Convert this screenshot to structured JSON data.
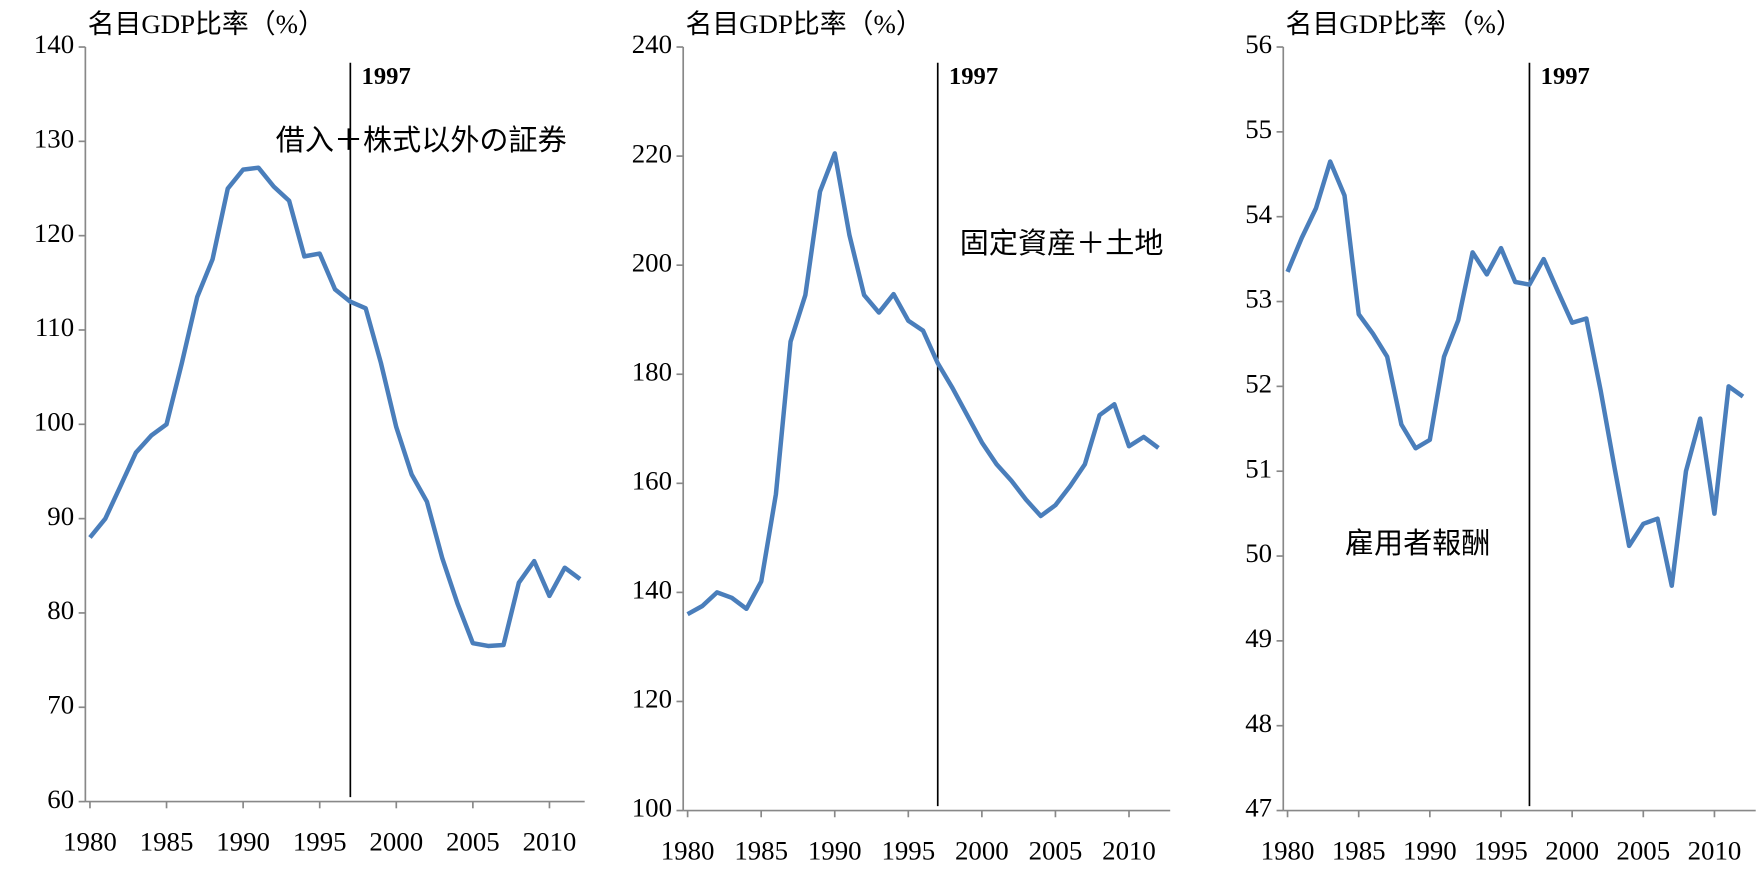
{
  "chart_data": [
    {
      "type": "line",
      "y_label": "名目GDP比率（%）",
      "x": [
        1980,
        1981,
        1982,
        1983,
        1984,
        1985,
        1986,
        1987,
        1988,
        1989,
        1990,
        1991,
        1992,
        1993,
        1994,
        1995,
        1996,
        1997,
        1998,
        1999,
        2000,
        2001,
        2002,
        2003,
        2004,
        2005,
        2006,
        2007,
        2008,
        2009,
        2010,
        2011,
        2012
      ],
      "series": [
        {
          "name": "借入＋株式以外の証券",
          "color": "#4a7ebb",
          "values": [
            88,
            90,
            93.5,
            97,
            98.8,
            100,
            106.5,
            113.5,
            117.5,
            125,
            127,
            127.2,
            125.2,
            123.7,
            117.8,
            118.1,
            114.3,
            113,
            112.3,
            106.5,
            99.7,
            94.7,
            91.8,
            85.8,
            81,
            76.8,
            76.5,
            76.6,
            83.2,
            85.5,
            81.8,
            84.8,
            83.6
          ]
        }
      ],
      "xlim": [
        1979.7,
        2012.3
      ],
      "xticks": [
        1980,
        1985,
        1990,
        1995,
        2000,
        2005,
        2010
      ],
      "ylim": [
        60,
        140
      ],
      "yticks": [
        60,
        70,
        80,
        90,
        100,
        110,
        120,
        130,
        140
      ],
      "vline": 1997
    },
    {
      "type": "line",
      "y_label": "名目GDP比率（%）",
      "x": [
        1980,
        1981,
        1982,
        1983,
        1984,
        1985,
        1986,
        1987,
        1988,
        1989,
        1990,
        1991,
        1992,
        1993,
        1994,
        1995,
        1996,
        1997,
        1998,
        1999,
        2000,
        2001,
        2002,
        2003,
        2004,
        2005,
        2006,
        2007,
        2008,
        2009,
        2010,
        2011,
        2012
      ],
      "series": [
        {
          "name": "固定資産＋土地",
          "color": "#4a7ebb",
          "values": [
            136,
            137.5,
            140,
            139,
            137,
            142,
            158,
            186,
            194.5,
            213.5,
            220.5,
            205.5,
            194.5,
            191.3,
            194.7,
            189.8,
            188,
            182,
            177.5,
            172.5,
            167.5,
            163.5,
            160.5,
            157,
            154,
            156,
            159.5,
            163.5,
            172.5,
            174.5,
            166.8,
            168.5,
            166.5
          ]
        }
      ],
      "xlim": [
        1979.7,
        2012.8
      ],
      "xticks": [
        1980,
        1985,
        1990,
        1995,
        2000,
        2005,
        2010
      ],
      "ylim": [
        100,
        240
      ],
      "yticks": [
        100,
        120,
        140,
        160,
        180,
        200,
        220,
        240
      ],
      "vline": 1997
    },
    {
      "type": "line",
      "y_label": "名目GDP比率（%）",
      "x": [
        1980,
        1981,
        1982,
        1983,
        1984,
        1985,
        1986,
        1987,
        1988,
        1989,
        1990,
        1991,
        1992,
        1993,
        1994,
        1995,
        1996,
        1997,
        1998,
        1999,
        2000,
        2001,
        2002,
        2003,
        2004,
        2005,
        2006,
        2007,
        2008,
        2009,
        2010,
        2011,
        2012
      ],
      "series": [
        {
          "name": "雇用者報酬",
          "color": "#4a7ebb",
          "values": [
            53.35,
            53.75,
            54.1,
            54.65,
            54.25,
            52.85,
            52.62,
            52.35,
            51.55,
            51.27,
            51.37,
            52.35,
            52.78,
            53.58,
            53.32,
            53.63,
            53.23,
            53.2,
            53.5,
            53.12,
            52.75,
            52.8,
            51.95,
            51.02,
            50.12,
            50.38,
            50.44,
            49.65,
            51,
            51.62,
            50.5,
            52,
            51.88
          ]
        }
      ],
      "xlim": [
        1979.7,
        2012.9
      ],
      "xticks": [
        1980,
        1985,
        1990,
        1995,
        2000,
        2005,
        2010
      ],
      "ylim": [
        47,
        56
      ],
      "yticks": [
        47,
        48,
        49,
        50,
        51,
        52,
        53,
        54,
        55,
        56
      ],
      "vline": 1997
    }
  ]
}
